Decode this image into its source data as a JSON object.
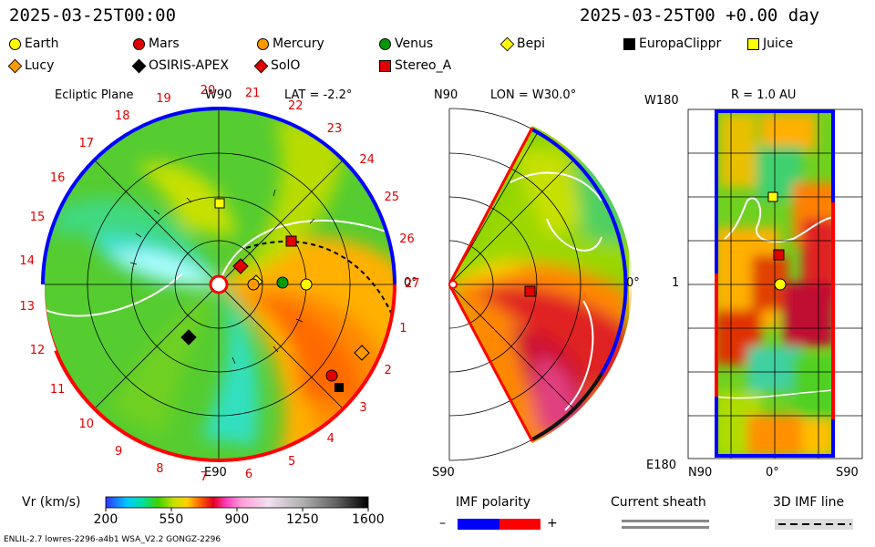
{
  "header": {
    "datetime": "2025-03-25T00:00",
    "offset": "2025-03-25T00 +0.00 day"
  },
  "legend": {
    "items": [
      {
        "name": "Earth",
        "shape": "circle",
        "color": "#ffff00"
      },
      {
        "name": "Mars",
        "shape": "circle",
        "color": "#e00000"
      },
      {
        "name": "Mercury",
        "shape": "circle",
        "color": "#ff9900"
      },
      {
        "name": "Venus",
        "shape": "circle",
        "color": "#009900"
      },
      {
        "name": "Bepi",
        "shape": "diamond",
        "color": "#ffff00"
      },
      {
        "name": "EuropaClippr",
        "shape": "square",
        "color": "#000000"
      },
      {
        "name": "Juice",
        "shape": "square",
        "color": "#ffff00"
      },
      {
        "name": "Lucy",
        "shape": "diamond",
        "color": "#ff9900"
      },
      {
        "name": "OSIRIS-APEX",
        "shape": "diamond",
        "color": "#000000"
      },
      {
        "name": "SolO",
        "shape": "diamond",
        "color": "#e00000"
      },
      {
        "name": "Stereo_A",
        "shape": "square",
        "color": "#e00000"
      }
    ]
  },
  "panels": {
    "ecliptic": {
      "title": "Ecliptic Plane",
      "lat": "LAT = -2.2°",
      "top_label": "W90",
      "bottom_label": "E90",
      "right_label": "0°",
      "hour_labels": [
        "1",
        "2",
        "3",
        "4",
        "5",
        "6",
        "7",
        "8",
        "9",
        "10",
        "11",
        "12",
        "13",
        "14",
        "15",
        "16",
        "17",
        "18",
        "19",
        "20",
        "21",
        "22",
        "23",
        "24",
        "25",
        "26",
        "27"
      ]
    },
    "meridional": {
      "lon": "LON = W30.0°",
      "top_label": "N90",
      "bottom_label": "S90",
      "right_label": "0°"
    },
    "map": {
      "r": "R = 1.0 AU",
      "top_label": "W180",
      "mid_label": "1",
      "bottom_label": "E180",
      "x_left": "N90",
      "x_mid": "0°",
      "x_right": "S90"
    }
  },
  "colorbar": {
    "title": "Vr (km/s)",
    "ticks": [
      "200",
      "550",
      "900",
      "1250",
      "1600"
    ]
  },
  "imf": {
    "title": "IMF polarity",
    "minus": "–",
    "plus": "+",
    "negative_color": "#0000ff",
    "positive_color": "#ff0000"
  },
  "sheath": {
    "title": "Current sheath"
  },
  "imf3d": {
    "title": "3D IMF line"
  },
  "footer": {
    "left": "ENLIL-2.7 lowres-2296-a4b1 WSA_V2.2 GONGZ-2296"
  },
  "chart_data": {
    "type": "heatmap",
    "quantity": "Vr (km/s)",
    "colorbar_range": [
      200,
      1600
    ],
    "colorbar_ticks": [
      200,
      550,
      900,
      1250,
      1600
    ],
    "ecliptic_lat_deg": -2.2,
    "meridional_lon_deg": "W30.0",
    "map_radius_au": 1.0
  }
}
